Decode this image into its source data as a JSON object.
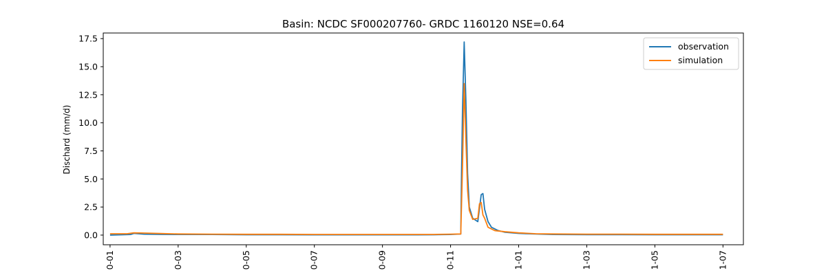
{
  "chart_data": {
    "type": "line",
    "title": "Basin: NCDC SF000207760- GRDC  1160120 NSE=0.64",
    "xlabel": "",
    "ylabel": "Dischard (mm/d)",
    "x_tick_labels": [
      "0-01",
      "0-03",
      "0-05",
      "0-07",
      "0-09",
      "0-11",
      "1-01",
      "1-03",
      "1-05",
      "1-07"
    ],
    "y_ticks": [
      0.0,
      2.5,
      5.0,
      7.5,
      10.0,
      12.5,
      15.0,
      17.5
    ],
    "y_tick_labels": [
      "0.0",
      "2.5",
      "5.0",
      "7.5",
      "10.0",
      "12.5",
      "15.0",
      "17.5"
    ],
    "ylim": [
      -0.86,
      18.0
    ],
    "xlim": [
      -0.2,
      18.6
    ],
    "grid": false,
    "legend": {
      "placement": "top-right",
      "entries": [
        "observation",
        "simulation"
      ]
    },
    "series": [
      {
        "name": "observation",
        "color": "#1f77b4",
        "x": [
          0,
          0.6,
          0.7,
          1.0,
          1.5,
          2.0,
          3.0,
          4.0,
          5.0,
          6.0,
          7.0,
          8.0,
          9.0,
          9.5,
          10.0,
          10.3,
          10.32,
          10.35,
          10.4,
          10.45,
          10.5,
          10.55,
          10.65,
          10.8,
          10.85,
          10.9,
          10.95,
          11.0,
          11.1,
          11.2,
          11.4,
          11.6,
          12.0,
          12.5,
          13.0,
          14.0,
          15.0,
          16.0,
          17.0,
          18.0
        ],
        "y": [
          0.0,
          0.05,
          0.15,
          0.08,
          0.06,
          0.05,
          0.05,
          0.03,
          0.03,
          0.02,
          0.02,
          0.02,
          0.02,
          0.03,
          0.05,
          0.1,
          5.0,
          11.0,
          17.2,
          12.0,
          5.5,
          2.5,
          1.5,
          1.2,
          2.4,
          3.6,
          3.7,
          2.3,
          1.2,
          0.7,
          0.4,
          0.25,
          0.15,
          0.1,
          0.05,
          0.04,
          0.04,
          0.03,
          0.03,
          0.03
        ]
      },
      {
        "name": "simulation",
        "color": "#ff7f0e",
        "x": [
          0,
          0.5,
          0.7,
          1.0,
          1.5,
          2.0,
          3.0,
          4.0,
          5.0,
          6.0,
          7.0,
          8.0,
          9.0,
          9.5,
          10.0,
          10.3,
          10.35,
          10.4,
          10.45,
          10.5,
          10.55,
          10.65,
          10.8,
          10.85,
          10.9,
          10.95,
          11.0,
          11.1,
          11.3,
          11.6,
          12.0,
          12.5,
          13.0,
          14.0,
          15.0,
          16.0,
          17.0,
          18.0
        ],
        "y": [
          0.12,
          0.12,
          0.2,
          0.18,
          0.14,
          0.1,
          0.08,
          0.07,
          0.07,
          0.06,
          0.06,
          0.06,
          0.06,
          0.06,
          0.08,
          0.1,
          6.0,
          13.5,
          8.5,
          4.0,
          2.2,
          1.4,
          1.5,
          2.8,
          2.9,
          1.8,
          1.5,
          0.7,
          0.4,
          0.3,
          0.2,
          0.12,
          0.1,
          0.08,
          0.08,
          0.07,
          0.07,
          0.07
        ]
      }
    ]
  }
}
